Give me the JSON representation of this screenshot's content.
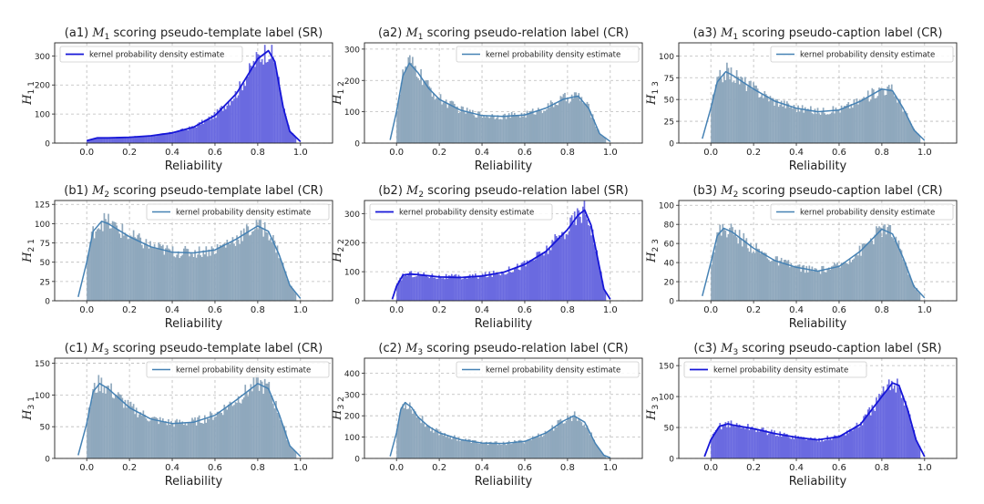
{
  "chart_data": [
    {
      "panel": "a1",
      "title_prefix": "(a1)",
      "model": "M",
      "model_sub": "1",
      "title_suffix": "scoring pseudo-template label (SR)",
      "ylabel_sub": "1 1",
      "xlabel": "Reliability",
      "type": "bar",
      "style": "SR",
      "xlim": [
        -0.15,
        1.15
      ],
      "ylim": [
        0,
        345
      ],
      "yticks": [
        0,
        100,
        200,
        300
      ],
      "xticks": [
        "0.0",
        "0.2",
        "0.4",
        "0.6",
        "0.8",
        "1.0"
      ],
      "legend": "kernel probability density estimate",
      "legend_pos": "top-left",
      "support": [
        0.0,
        0.98
      ],
      "kde": {
        "x": [
          0.0,
          0.05,
          0.1,
          0.2,
          0.3,
          0.4,
          0.5,
          0.6,
          0.7,
          0.75,
          0.8,
          0.85,
          0.88,
          0.9,
          0.92,
          0.95,
          1.0
        ],
        "y": [
          8,
          18,
          18,
          20,
          25,
          35,
          55,
          95,
          170,
          230,
          290,
          318,
          280,
          200,
          120,
          40,
          5
        ]
      }
    },
    {
      "panel": "a2",
      "title_prefix": "(a2)",
      "model": "M",
      "model_sub": "1",
      "title_suffix": "scoring pseudo-relation label (CR)",
      "ylabel_sub": "1 2",
      "xlabel": "Reliability",
      "type": "bar",
      "style": "CR",
      "xlim": [
        -0.15,
        1.15
      ],
      "ylim": [
        0,
        320
      ],
      "yticks": [
        0,
        100,
        200,
        300
      ],
      "xticks": [
        "0.0",
        "0.2",
        "0.4",
        "0.6",
        "0.8",
        "1.0"
      ],
      "legend": "kernel probability density estimate",
      "legend_pos": "top-right",
      "support": [
        0.0,
        0.98
      ],
      "kde": {
        "x": [
          -0.03,
          0.0,
          0.03,
          0.06,
          0.1,
          0.15,
          0.2,
          0.3,
          0.4,
          0.5,
          0.6,
          0.7,
          0.78,
          0.85,
          0.9,
          0.95,
          1.0
        ],
        "y": [
          10,
          100,
          215,
          255,
          225,
          175,
          140,
          105,
          88,
          85,
          90,
          112,
          140,
          150,
          110,
          30,
          5
        ]
      }
    },
    {
      "panel": "a3",
      "title_prefix": "(a3)",
      "model": "M",
      "model_sub": "1",
      "title_suffix": "scoring pseudo-caption label (CR)",
      "ylabel_sub": "1 3",
      "xlabel": "Reliability",
      "type": "bar",
      "style": "CR",
      "xlim": [
        -0.15,
        1.15
      ],
      "ylim": [
        0,
        115
      ],
      "yticks": [
        0,
        25,
        50,
        75,
        100
      ],
      "xticks": [
        "0.0",
        "0.2",
        "0.4",
        "0.6",
        "0.8",
        "1.0"
      ],
      "legend": "kernel probability density estimate",
      "legend_pos": "top-right",
      "support": [
        0.0,
        0.98
      ],
      "kde": {
        "x": [
          -0.04,
          0.0,
          0.03,
          0.07,
          0.1,
          0.2,
          0.3,
          0.4,
          0.5,
          0.6,
          0.7,
          0.8,
          0.85,
          0.9,
          0.95,
          1.0
        ],
        "y": [
          5,
          40,
          70,
          82,
          78,
          62,
          48,
          40,
          36,
          38,
          48,
          62,
          60,
          40,
          15,
          3
        ]
      }
    },
    {
      "panel": "b1",
      "title_prefix": "(b1)",
      "model": "M",
      "model_sub": "2",
      "title_suffix": "scoring pseudo-template label (CR)",
      "ylabel_sub": "2 1",
      "xlabel": "Reliability",
      "type": "bar",
      "style": "CR",
      "xlim": [
        -0.15,
        1.15
      ],
      "ylim": [
        0,
        130
      ],
      "yticks": [
        0,
        25,
        50,
        75,
        100,
        125
      ],
      "xticks": [
        "0.0",
        "0.2",
        "0.4",
        "0.6",
        "0.8",
        "1.0"
      ],
      "legend": "kernel probability density estimate",
      "legend_pos": "top-right",
      "support": [
        0.0,
        0.98
      ],
      "kde": {
        "x": [
          -0.04,
          0.0,
          0.03,
          0.07,
          0.1,
          0.2,
          0.3,
          0.4,
          0.5,
          0.6,
          0.7,
          0.8,
          0.85,
          0.9,
          0.95,
          1.0
        ],
        "y": [
          5,
          50,
          90,
          103,
          100,
          83,
          70,
          63,
          62,
          66,
          80,
          97,
          90,
          60,
          20,
          3
        ]
      }
    },
    {
      "panel": "b2",
      "title_prefix": "(b2)",
      "model": "M",
      "model_sub": "2",
      "title_suffix": "scoring pseudo-relation label (SR)",
      "ylabel_sub": "2 2",
      "xlabel": "Reliability",
      "type": "bar",
      "style": "SR",
      "xlim": [
        -0.15,
        1.15
      ],
      "ylim": [
        0,
        345
      ],
      "yticks": [
        0,
        100,
        200,
        300
      ],
      "xticks": [
        "0.0",
        "0.2",
        "0.4",
        "0.6",
        "0.8",
        "1.0"
      ],
      "legend": "kernel probability density estimate",
      "legend_pos": "top-left",
      "support": [
        0.0,
        0.98
      ],
      "kde": {
        "x": [
          -0.02,
          0.0,
          0.03,
          0.06,
          0.1,
          0.2,
          0.3,
          0.4,
          0.5,
          0.6,
          0.7,
          0.8,
          0.85,
          0.88,
          0.91,
          0.94,
          0.97,
          1.0
        ],
        "y": [
          5,
          50,
          88,
          92,
          90,
          82,
          80,
          85,
          98,
          125,
          170,
          245,
          295,
          312,
          260,
          150,
          40,
          5
        ]
      }
    },
    {
      "panel": "b3",
      "title_prefix": "(b3)",
      "model": "M",
      "model_sub": "2",
      "title_suffix": "scoring pseudo-caption label (CR)",
      "ylabel_sub": "2 3",
      "xlabel": "Reliability",
      "type": "bar",
      "style": "CR",
      "xlim": [
        -0.15,
        1.15
      ],
      "ylim": [
        0,
        105
      ],
      "yticks": [
        0,
        20,
        40,
        60,
        80,
        100
      ],
      "xticks": [
        "0.0",
        "0.2",
        "0.4",
        "0.6",
        "0.8",
        "1.0"
      ],
      "legend": "kernel probability density estimate",
      "legend_pos": "top-right",
      "support": [
        0.0,
        0.98
      ],
      "kde": {
        "x": [
          -0.04,
          0.0,
          0.03,
          0.06,
          0.1,
          0.2,
          0.3,
          0.4,
          0.5,
          0.6,
          0.7,
          0.8,
          0.85,
          0.9,
          0.95,
          1.0
        ],
        "y": [
          5,
          40,
          68,
          76,
          72,
          55,
          42,
          35,
          31,
          36,
          52,
          75,
          70,
          45,
          15,
          3
        ]
      }
    },
    {
      "panel": "c1",
      "title_prefix": "(c1)",
      "model": "M",
      "model_sub": "3",
      "title_suffix": "scoring pseudo-template label (CR)",
      "ylabel_sub": "3 1",
      "xlabel": "Reliability",
      "type": "bar",
      "style": "CR",
      "xlim": [
        -0.15,
        1.15
      ],
      "ylim": [
        0,
        158
      ],
      "yticks": [
        0,
        50,
        100,
        150
      ],
      "xticks": [
        "0.0",
        "0.2",
        "0.4",
        "0.6",
        "0.8",
        "1.0"
      ],
      "legend": "kernel probability density estimate",
      "legend_pos": "top-right",
      "support": [
        0.0,
        0.98
      ],
      "kde": {
        "x": [
          -0.04,
          0.0,
          0.03,
          0.06,
          0.1,
          0.2,
          0.3,
          0.4,
          0.5,
          0.6,
          0.7,
          0.8,
          0.85,
          0.9,
          0.95,
          1.0
        ],
        "y": [
          5,
          55,
          105,
          118,
          110,
          80,
          62,
          55,
          57,
          68,
          92,
          118,
          110,
          70,
          20,
          3
        ]
      }
    },
    {
      "panel": "c2",
      "title_prefix": "(c2)",
      "model": "M",
      "model_sub": "3",
      "title_suffix": "scoring pseudo-relation label (CR)",
      "ylabel_sub": "3 2",
      "xlabel": "Reliability",
      "type": "bar",
      "style": "CR",
      "xlim": [
        -0.15,
        1.15
      ],
      "ylim": [
        0,
        470
      ],
      "yticks": [
        0,
        100,
        200,
        300,
        400
      ],
      "xticks": [
        "0.0",
        "0.2",
        "0.4",
        "0.6",
        "0.8",
        "1.0"
      ],
      "legend": "kernel probability density estimate",
      "legend_pos": "top-right",
      "support": [
        0.0,
        0.98
      ],
      "kde": {
        "x": [
          -0.03,
          0.0,
          0.02,
          0.04,
          0.07,
          0.1,
          0.15,
          0.2,
          0.3,
          0.4,
          0.5,
          0.6,
          0.7,
          0.78,
          0.83,
          0.88,
          0.93,
          0.97,
          1.0
        ],
        "y": [
          10,
          120,
          230,
          262,
          240,
          195,
          150,
          120,
          88,
          72,
          70,
          80,
          120,
          175,
          200,
          170,
          70,
          15,
          3
        ]
      }
    },
    {
      "panel": "c3",
      "title_prefix": "(c3)",
      "model": "M",
      "model_sub": "3",
      "title_suffix": "scoring pseudo-caption label (SR)",
      "ylabel_sub": "3 3",
      "xlabel": "Reliability",
      "type": "bar",
      "style": "SR",
      "xlim": [
        -0.15,
        1.15
      ],
      "ylim": [
        0,
        162
      ],
      "yticks": [
        0,
        50,
        100,
        150
      ],
      "xticks": [
        "0.0",
        "0.2",
        "0.4",
        "0.6",
        "0.8",
        "1.0"
      ],
      "legend": "kernel probability density estimate",
      "legend_pos": "top-left",
      "support": [
        0.0,
        0.98
      ],
      "kde": {
        "x": [
          -0.03,
          0.0,
          0.04,
          0.08,
          0.1,
          0.2,
          0.3,
          0.4,
          0.5,
          0.6,
          0.7,
          0.8,
          0.85,
          0.88,
          0.92,
          0.96,
          1.0
        ],
        "y": [
          3,
          30,
          52,
          56,
          54,
          48,
          40,
          34,
          30,
          35,
          55,
          100,
          122,
          118,
          80,
          30,
          3
        ]
      }
    }
  ],
  "colors": {
    "sr_bar": "#6a6ae0",
    "sr_line": "#1616d8",
    "cr_bar": "#8fa8bd",
    "cr_line": "#4682b4",
    "grid": "#bbbbbb"
  }
}
